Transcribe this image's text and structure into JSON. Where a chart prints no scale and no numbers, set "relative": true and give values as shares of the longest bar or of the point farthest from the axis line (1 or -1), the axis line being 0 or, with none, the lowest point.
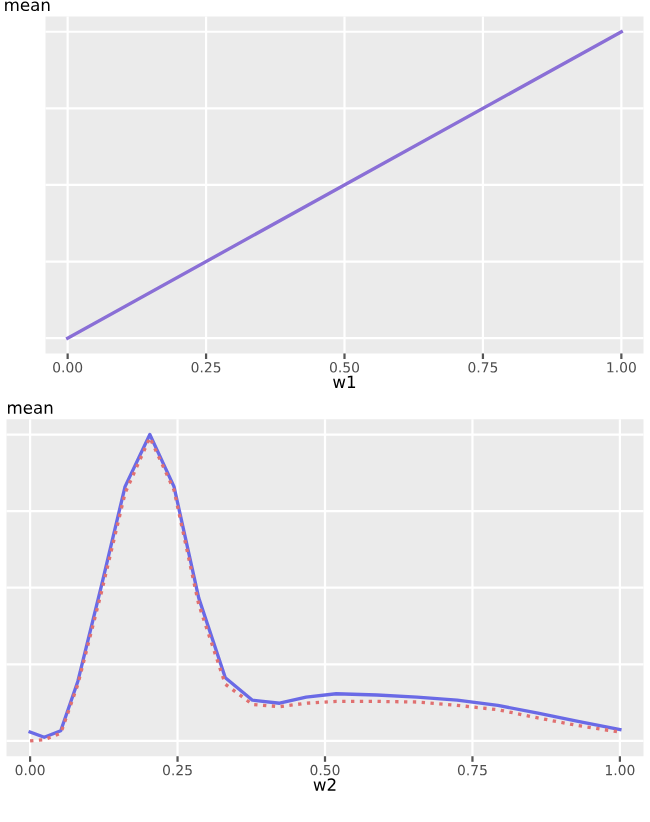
{
  "chart_data": [
    {
      "type": "line",
      "title": "mean",
      "xlabel": "w1",
      "relative": true,
      "x": [
        0,
        1
      ],
      "xlim": [
        -0.04,
        1.04
      ],
      "xticks": [
        {
          "value": 0,
          "label": "0.00"
        },
        {
          "value": 0.25,
          "label": "0.25"
        },
        {
          "value": 0.5,
          "label": "0.50"
        },
        {
          "value": 0.75,
          "label": "0.75"
        },
        {
          "value": 1,
          "label": "1.00"
        }
      ],
      "grid": true,
      "series": [
        {
          "color": "#8a6fd6",
          "values": [
            0,
            1
          ]
        }
      ]
    },
    {
      "type": "line",
      "title": "mean",
      "xlabel": "w2",
      "relative": true,
      "x": [
        0,
        0.024,
        0.052,
        0.081,
        0.121,
        0.161,
        0.203,
        0.244,
        0.286,
        0.331,
        0.377,
        0.423,
        0.468,
        0.519,
        0.588,
        0.656,
        0.724,
        0.793,
        0.861,
        0.929,
        1
      ],
      "xlim": [
        -0.04,
        1.04
      ],
      "xticks": [
        {
          "value": 0,
          "label": "0.00"
        },
        {
          "value": 0.25,
          "label": "0.25"
        },
        {
          "value": 0.5,
          "label": "0.50"
        },
        {
          "value": 0.75,
          "label": "0.75"
        },
        {
          "value": 1,
          "label": "1.00"
        }
      ],
      "grid": true,
      "series": [
        {
          "color": "#6a6ae6",
          "line_style": "solid",
          "values": [
            0.029,
            0.012,
            0.033,
            0.195,
            0.507,
            0.83,
            1,
            0.83,
            0.466,
            0.206,
            0.133,
            0.123,
            0.143,
            0.154,
            0.15,
            0.143,
            0.133,
            0.116,
            0.091,
            0.064,
            0.037
          ]
        },
        {
          "color": "#e07070",
          "line_style": "dotted",
          "values": [
            0,
            0.004,
            0.025,
            0.185,
            0.486,
            0.809,
            0.99,
            0.819,
            0.445,
            0.185,
            0.119,
            0.112,
            0.123,
            0.129,
            0.129,
            0.127,
            0.116,
            0.102,
            0.075,
            0.05,
            0.029
          ]
        }
      ]
    }
  ]
}
